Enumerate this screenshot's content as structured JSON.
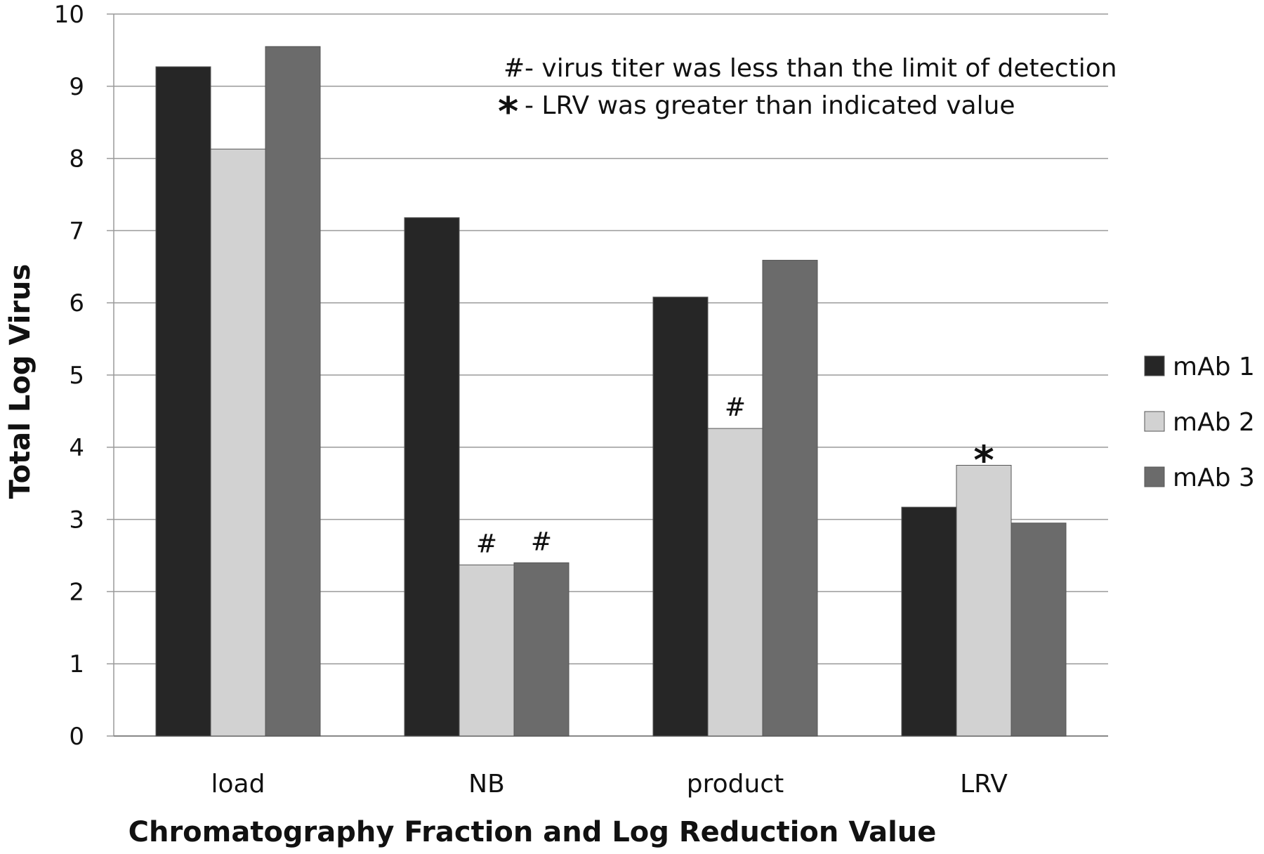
{
  "chart_data": {
    "type": "bar",
    "title": "",
    "xlabel": "Chromatography Fraction and Log Reduction Value",
    "ylabel": "Total Log Virus",
    "ylim": [
      0,
      10
    ],
    "yticks": [
      0,
      1,
      2,
      3,
      4,
      5,
      6,
      7,
      8,
      9,
      10
    ],
    "grid": true,
    "legend_position": "right",
    "categories": [
      "load",
      "NB",
      "product",
      "LRV"
    ],
    "series": [
      {
        "name": "mAb 1",
        "color": "#262626",
        "values": [
          9.27,
          7.18,
          6.08,
          3.17
        ]
      },
      {
        "name": "mAb 2",
        "color": "#d2d2d2",
        "values": [
          8.13,
          2.37,
          4.26,
          3.75
        ]
      },
      {
        "name": "mAb 3",
        "color": "#6b6b6b",
        "values": [
          9.55,
          2.4,
          6.59,
          2.95
        ]
      }
    ],
    "annotations": [
      {
        "symbol": "#",
        "text": "- virus titer was less than the limit of detection"
      },
      {
        "symbol": "*",
        "text": "- LRV was greater than indicated value"
      }
    ],
    "bar_markers": [
      {
        "category": "NB",
        "series": "mAb 2",
        "symbol": "#"
      },
      {
        "category": "NB",
        "series": "mAb 3",
        "symbol": "#"
      },
      {
        "category": "product",
        "series": "mAb 2",
        "symbol": "#"
      },
      {
        "category": "LRV",
        "series": "mAb 2",
        "symbol": "*"
      }
    ]
  }
}
